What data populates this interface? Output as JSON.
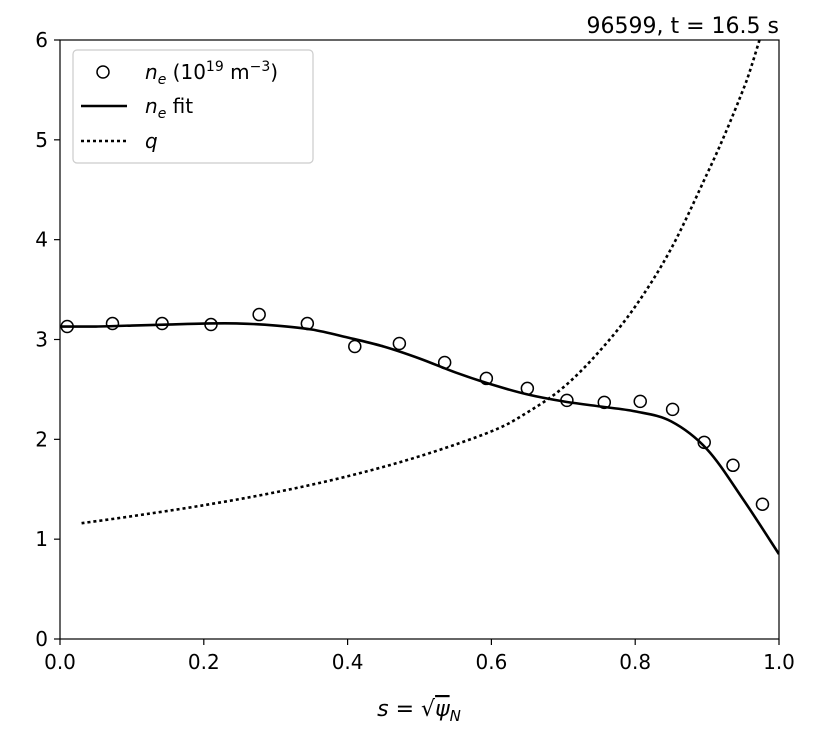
{
  "chart_data": {
    "type": "line",
    "title": "96599, t = 16.5 s",
    "xlabel": "s = √ψN",
    "ylabel": "",
    "xlim": [
      0.0,
      1.0
    ],
    "ylim": [
      0,
      6
    ],
    "x_ticks": [
      "0.0",
      "0.2",
      "0.4",
      "0.6",
      "0.8",
      "1.0"
    ],
    "y_ticks": [
      "0",
      "1",
      "2",
      "3",
      "4",
      "5",
      "6"
    ],
    "grid": false,
    "legend_position": "top-left",
    "legend": [
      {
        "label": "n_e (10^19 m^-3)",
        "marker": "circle"
      },
      {
        "label": "n_e fit",
        "style": "solid"
      },
      {
        "label": "q",
        "style": "dotted"
      }
    ],
    "series": [
      {
        "name": "ne_points",
        "kind": "scatter",
        "x": [
          0.01,
          0.073,
          0.142,
          0.21,
          0.277,
          0.344,
          0.41,
          0.472,
          0.535,
          0.593,
          0.65,
          0.705,
          0.757,
          0.807,
          0.852,
          0.896,
          0.936,
          0.977
        ],
        "y": [
          3.13,
          3.16,
          3.16,
          3.15,
          3.25,
          3.16,
          2.93,
          2.96,
          2.77,
          2.61,
          2.51,
          2.39,
          2.37,
          2.38,
          2.3,
          1.97,
          1.74,
          1.35
        ]
      },
      {
        "name": "ne_fit",
        "kind": "line",
        "x": [
          0.0,
          0.05,
          0.1,
          0.15,
          0.2,
          0.25,
          0.3,
          0.35,
          0.4,
          0.45,
          0.5,
          0.55,
          0.6,
          0.65,
          0.7,
          0.75,
          0.8,
          0.85,
          0.9,
          0.95,
          1.0
        ],
        "y": [
          3.13,
          3.13,
          3.14,
          3.15,
          3.16,
          3.16,
          3.14,
          3.1,
          3.02,
          2.93,
          2.81,
          2.67,
          2.55,
          2.45,
          2.38,
          2.33,
          2.28,
          2.18,
          1.9,
          1.4,
          0.85
        ]
      },
      {
        "name": "q",
        "kind": "line",
        "x": [
          0.03,
          0.1,
          0.2,
          0.3,
          0.4,
          0.5,
          0.6,
          0.65,
          0.7,
          0.75,
          0.8,
          0.85,
          0.9,
          0.925,
          0.95,
          0.96,
          0.975
        ],
        "y": [
          1.16,
          1.23,
          1.34,
          1.47,
          1.63,
          1.83,
          2.08,
          2.27,
          2.52,
          2.88,
          3.33,
          3.91,
          4.66,
          5.06,
          5.5,
          5.7,
          6.05
        ]
      }
    ]
  }
}
